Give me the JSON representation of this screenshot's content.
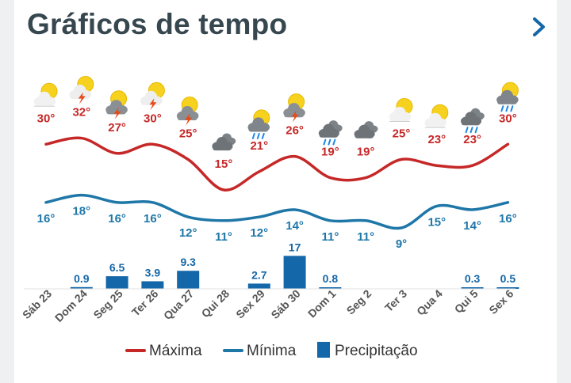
{
  "header": {
    "title": "Gráficos de tempo",
    "next_icon": "chevron-right-icon"
  },
  "colors": {
    "max": "#c62828",
    "min": "#1f77a8",
    "precip": "#1467a8",
    "title": "#37474f",
    "axis_text": "#555555"
  },
  "chart_data": {
    "type": "line+bar",
    "categories": [
      "Sáb 23",
      "Dom 24",
      "Seg 25",
      "Ter 26",
      "Qua 27",
      "Qui 28",
      "Sex 29",
      "Sáb 30",
      "Dom 1",
      "Seg 2",
      "Ter 3",
      "Qua 4",
      "Qui 5",
      "Sex 6"
    ],
    "series": [
      {
        "name": "Máxima",
        "type": "line",
        "values": [
          30,
          32,
          27,
          30,
          25,
          15,
          21,
          26,
          19,
          19,
          25,
          23,
          23,
          30
        ],
        "labels": [
          "30°",
          "32°",
          "27°",
          "30°",
          "25°",
          "15°",
          "21°",
          "26°",
          "19°",
          "19°",
          "25°",
          "23°",
          "23°",
          "30°"
        ]
      },
      {
        "name": "Mínima",
        "type": "line",
        "values": [
          16,
          18,
          16,
          16,
          12,
          11,
          12,
          14,
          11,
          11,
          9,
          15,
          14,
          16
        ],
        "labels": [
          "16°",
          "18°",
          "16°",
          "16°",
          "12°",
          "11°",
          "12°",
          "14°",
          "11°",
          "11°",
          "9°",
          "15°",
          "14°",
          "16°"
        ]
      },
      {
        "name": "Precipitação",
        "type": "bar",
        "values": [
          0,
          0.9,
          6.5,
          3.9,
          9.3,
          0,
          2.7,
          17,
          0.8,
          0,
          0,
          0,
          0.3,
          0.5
        ],
        "labels": [
          "",
          "0.9",
          "6.5",
          "3.9",
          "9.3",
          "",
          "2.7",
          "17",
          "0.8",
          "",
          "",
          "",
          "0.3",
          "0.5"
        ]
      }
    ],
    "weather_icons": [
      "sun-cloud",
      "storm-sun",
      "storm-sun-cloud",
      "storm-sun",
      "storm-sun-cloud",
      "cloudy",
      "rain-sun",
      "storm-sun-cloud",
      "rain",
      "cloudy",
      "sun-cloud",
      "sun-cloud",
      "rain",
      "rain-sun"
    ],
    "legend": [
      "Máxima",
      "Mínima",
      "Precipitação"
    ],
    "legend_position": "bottom"
  }
}
